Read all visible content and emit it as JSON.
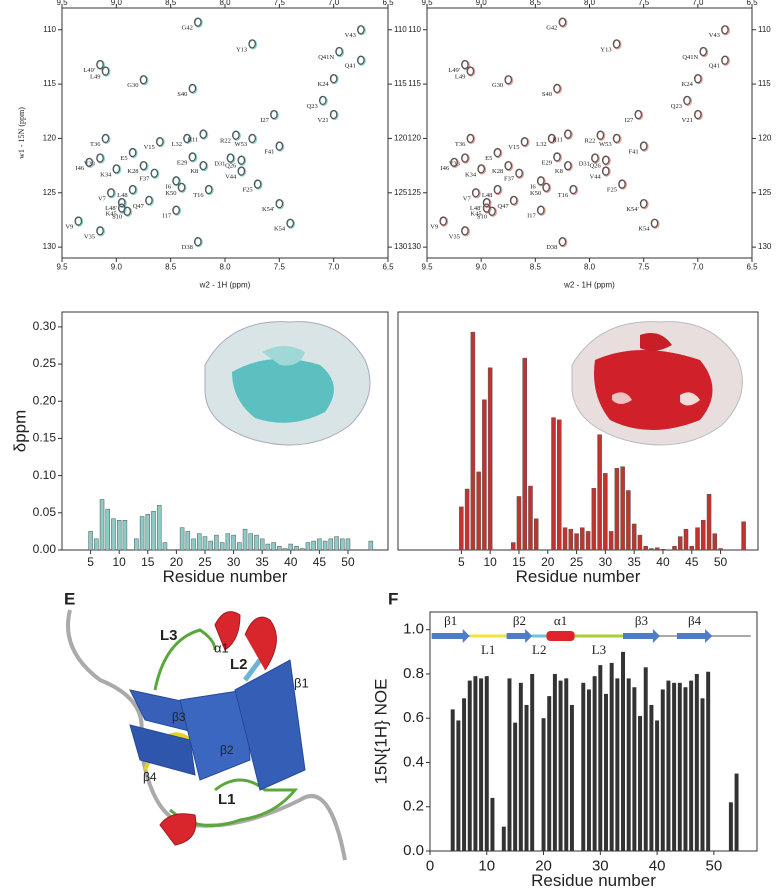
{
  "chart_data": [
    {
      "type": "scatter",
      "xlabel": "w2 - 1H  (ppm)",
      "ylabel": "w1 - 15N  (ppm)",
      "peak_color": "#555",
      "tint_color": "#7fd3d3",
      "xlim": [
        9.5,
        6.5
      ],
      "ylim": [
        108,
        131
      ],
      "y_inverted": true,
      "mirror_ticks": true,
      "xticks": [
        9.5,
        {
          "value": 9,
          "label": "9.0"
        },
        8.5,
        {
          "value": 8,
          "label": "8.0"
        },
        7.5,
        {
          "value": 7,
          "label": "7.0"
        },
        6.5
      ],
      "yticks": [
        110,
        115,
        120,
        125,
        130
      ],
      "x": [
        8.25,
        6.75,
        7.75,
        6.95,
        6.75,
        9.15,
        9.1,
        8.75,
        8.3,
        7.0,
        7.1,
        7.55,
        7.0,
        9.1,
        8.35,
        8.2,
        7.9,
        7.75,
        7.5,
        8.6,
        8.85,
        8.3,
        9.15,
        9.25,
        9.0,
        8.75,
        8.2,
        7.95,
        7.85,
        8.65,
        7.85,
        7.7,
        8.45,
        8.4,
        8.15,
        9.05,
        8.85,
        8.7,
        8.95,
        8.95,
        8.9,
        8.45,
        7.5,
        7.4,
        9.35,
        9.15,
        8.25
      ],
      "y": [
        109.3,
        110.0,
        111.3,
        112.0,
        112.8,
        113.2,
        113.8,
        114.6,
        115.4,
        114.5,
        116.5,
        117.8,
        117.8,
        120.0,
        120.0,
        119.6,
        119.7,
        120.0,
        120.7,
        120.3,
        121.3,
        121.7,
        121.8,
        122.2,
        122.8,
        122.5,
        122.5,
        121.8,
        122.0,
        123.2,
        123.0,
        124.2,
        123.9,
        124.5,
        124.7,
        125.0,
        124.7,
        125.7,
        125.9,
        126.4,
        126.7,
        126.6,
        126.0,
        127.8,
        127.6,
        128.5,
        129.5
      ],
      "labels": [
        "G42",
        "V43",
        "Y13",
        "Q41N",
        "Q41",
        "L49'",
        "L49",
        "G30",
        "S40",
        "K24",
        "Q23",
        "I27",
        "V21",
        "T36",
        "L32",
        "R11",
        "R22",
        "W53",
        "F41",
        "V15",
        "E5",
        "E29",
        "V33",
        "I46",
        "K34",
        "K28",
        "K8",
        "D31",
        "Q26",
        "F37",
        "V44",
        "F25",
        "I6",
        "K50",
        "T16",
        "V7",
        "L48",
        "Q47",
        "L48'",
        "K45",
        "S10",
        "I17",
        "K54'",
        "K54",
        "V9",
        "V35",
        "D38"
      ]
    },
    {
      "type": "scatter",
      "xlabel": "w2 - 1H  (ppm)",
      "peak_color": "#555",
      "tint_color": "#e89a90",
      "xlim": [
        9.5,
        6.5
      ],
      "ylim": [
        108,
        131
      ],
      "y_inverted": true,
      "mirror_ticks": true,
      "xticks": [
        9.5,
        {
          "value": 9,
          "label": "9.0"
        },
        8.5,
        {
          "value": 8,
          "label": "8.0"
        },
        7.5,
        {
          "value": 7,
          "label": "7.0"
        },
        6.5
      ],
      "yticks": [
        110,
        115,
        120,
        125,
        130
      ],
      "x": [
        8.25,
        6.75,
        7.75,
        6.95,
        6.75,
        9.15,
        9.1,
        8.75,
        8.3,
        7.0,
        7.1,
        7.55,
        7.0,
        9.1,
        8.35,
        8.2,
        7.9,
        7.75,
        7.5,
        8.6,
        8.85,
        8.3,
        9.15,
        9.25,
        9.0,
        8.75,
        8.2,
        7.95,
        7.85,
        8.65,
        7.85,
        7.7,
        8.45,
        8.4,
        8.15,
        9.05,
        8.85,
        8.7,
        8.95,
        8.95,
        8.9,
        8.45,
        7.5,
        7.4,
        9.35,
        9.15,
        8.25
      ],
      "y": [
        109.3,
        110.0,
        111.3,
        112.0,
        112.8,
        113.2,
        113.8,
        114.6,
        115.4,
        114.5,
        116.5,
        117.8,
        117.8,
        120.0,
        120.0,
        119.6,
        119.7,
        120.0,
        120.7,
        120.3,
        121.3,
        121.7,
        121.8,
        122.2,
        122.8,
        122.5,
        122.5,
        121.8,
        122.0,
        123.2,
        123.0,
        124.2,
        123.9,
        124.5,
        124.7,
        125.0,
        124.7,
        125.7,
        125.9,
        126.4,
        126.7,
        126.6,
        126.0,
        127.8,
        127.6,
        128.5,
        129.5
      ],
      "labels": [
        "G42",
        "V43",
        "Y13",
        "Q41N",
        "Q41",
        "L49'",
        "L49",
        "G30",
        "S40",
        "K24",
        "Q23",
        "I27",
        "V21",
        "T36",
        "L32",
        "R11",
        "R22",
        "W53",
        "F41",
        "V15",
        "E5",
        "E29",
        "V33",
        "I46",
        "K34",
        "K28",
        "K8",
        "D31",
        "Q26",
        "F37",
        "V44",
        "F25",
        "I6",
        "K50",
        "T16",
        "V7",
        "L48",
        "Q47",
        "L48'",
        "K45",
        "S10",
        "I17",
        "K54'",
        "K54",
        "V9",
        "V35",
        "D38"
      ]
    },
    {
      "type": "bar",
      "xlabel": "Residue number",
      "ylabel": "δppm",
      "color": "#8ccbc6",
      "xlim": [
        0,
        57
      ],
      "ylim": [
        0,
        0.32
      ],
      "xticks": [
        5,
        10,
        15,
        20,
        25,
        30,
        35,
        40,
        45,
        50
      ],
      "yticks": [
        {
          "value": 0,
          "label": "0.00"
        },
        {
          "value": 0.05,
          "label": "0.05"
        },
        {
          "value": 0.1,
          "label": "0.10"
        },
        {
          "value": 0.15,
          "label": "0.15"
        },
        {
          "value": 0.2,
          "label": "0.20"
        },
        {
          "value": 0.25,
          "label": "0.25"
        },
        {
          "value": 0.3,
          "label": "0.30"
        }
      ],
      "x": [
        5,
        6,
        7,
        8,
        9,
        10,
        11,
        13,
        14,
        15,
        16,
        17,
        18,
        21,
        22,
        23,
        24,
        25,
        26,
        27,
        28,
        29,
        30,
        31,
        32,
        33,
        34,
        35,
        36,
        37,
        38,
        39,
        40,
        41,
        42,
        43,
        44,
        45,
        46,
        47,
        48,
        49,
        50,
        54
      ],
      "values": [
        0.025,
        0.015,
        0.068,
        0.055,
        0.042,
        0.04,
        0.04,
        0.015,
        0.045,
        0.048,
        0.052,
        0.06,
        0.01,
        0.03,
        0.025,
        0.015,
        0.022,
        0.018,
        0.012,
        0.02,
        0.01,
        0.022,
        0.02,
        0.01,
        0.028,
        0.022,
        0.02,
        0.015,
        0.008,
        0.01,
        0.005,
        0.002,
        0.008,
        0.005,
        0.002,
        0.01,
        0.012,
        0.015,
        0.012,
        0.015,
        0.018,
        0.015,
        0.015,
        0.012
      ]
    },
    {
      "type": "bar",
      "xlabel": "Residue number",
      "color": "#c2332e",
      "xlim": [
        -6,
        56.5
      ],
      "ylim": [
        0,
        0.32
      ],
      "xticks": [
        5,
        10,
        15,
        20,
        25,
        30,
        35,
        40,
        45,
        50
      ],
      "x": [
        5,
        6,
        7,
        8,
        9,
        10,
        14,
        15,
        16,
        17,
        18,
        21,
        22,
        23,
        24,
        25,
        26,
        27,
        28,
        29,
        30,
        31,
        32,
        33,
        34,
        35,
        36,
        37,
        38,
        39,
        40,
        42,
        43,
        44,
        45,
        46,
        47,
        48,
        49,
        50,
        54
      ],
      "values": [
        0.058,
        0.082,
        0.293,
        0.105,
        0.202,
        0.245,
        0.01,
        0.072,
        0.258,
        0.086,
        0.042,
        0.178,
        0.175,
        0.03,
        0.028,
        0.022,
        0.03,
        0.025,
        0.083,
        0.155,
        0.103,
        0.025,
        0.11,
        0.112,
        0.08,
        0.035,
        0.02,
        0.005,
        0.002,
        0.003,
        0.001,
        0.005,
        0.018,
        0.028,
        0.005,
        0.03,
        0.04,
        0.075,
        0.022,
        0.002,
        0.038
      ]
    },
    {
      "type": "bar",
      "panel_label": "F",
      "xlabel": "Residue number",
      "ylabel": "15N{1H} NOE",
      "color": "#333",
      "xlim": [
        0,
        57.6
      ],
      "ylim": [
        0,
        1.08
      ],
      "xticks": [
        0,
        10,
        20,
        30,
        40,
        50
      ],
      "yticks": [
        {
          "value": 0,
          "label": "0.0"
        },
        {
          "value": 0.2,
          "label": "0.2"
        },
        {
          "value": 0.4,
          "label": "0.4"
        },
        {
          "value": 0.6,
          "label": "0.6"
        },
        {
          "value": 0.8,
          "label": "0.8"
        },
        {
          "value": 1,
          "label": "1.0"
        }
      ],
      "secondary_structure": [
        "β1",
        "L1",
        "β2",
        "L2",
        "α1",
        "L3",
        "β3",
        "β4"
      ],
      "x": [
        4,
        5,
        6,
        7,
        8,
        9,
        10,
        11,
        13,
        14,
        15,
        16,
        17,
        18,
        20,
        21,
        22,
        23,
        24,
        25,
        27,
        28,
        29,
        30,
        31,
        32,
        33,
        34,
        35,
        36,
        37,
        38,
        39,
        40,
        41,
        42,
        43,
        44,
        45,
        46,
        47,
        48,
        49,
        53,
        54
      ],
      "values": [
        0.64,
        0.59,
        0.69,
        0.77,
        0.79,
        0.78,
        0.79,
        0.24,
        0.11,
        0.78,
        0.58,
        0.76,
        0.66,
        0.8,
        0.6,
        0.7,
        0.8,
        0.77,
        0.78,
        0.66,
        0.76,
        0.73,
        0.79,
        0.84,
        0.71,
        0.85,
        0.78,
        0.9,
        0.78,
        0.74,
        0.61,
        0.83,
        0.66,
        0.59,
        0.73,
        0.77,
        0.76,
        0.76,
        0.74,
        0.77,
        0.8,
        0.69,
        0.81,
        0.22,
        0.35
      ]
    }
  ],
  "structure_panel": {
    "panel_label": "E",
    "labels": [
      "L3",
      "α1",
      "L2",
      "β1",
      "β3",
      "β2",
      "β4",
      "L1"
    ]
  }
}
